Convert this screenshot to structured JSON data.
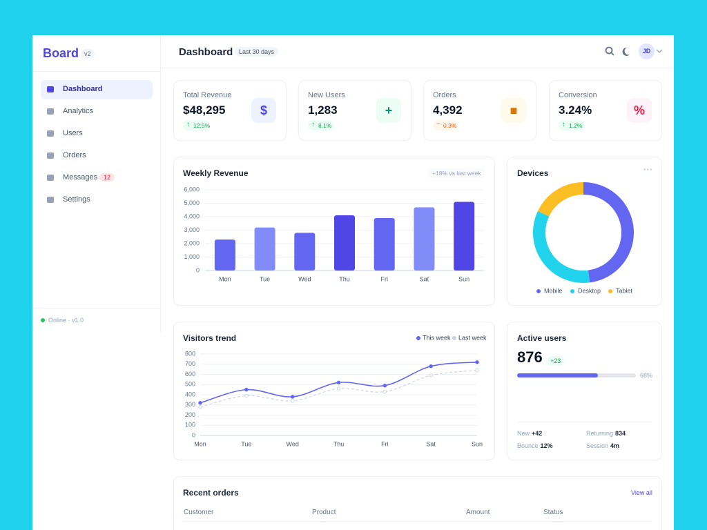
{
  "sidebar": {
    "brand": "Board",
    "version": "v2",
    "nav": [
      {
        "label": "Dashboard"
      },
      {
        "label": "Analytics"
      },
      {
        "label": "Users"
      },
      {
        "label": "Orders"
      },
      {
        "label": "Messages",
        "badge": "12"
      },
      {
        "label": "Settings"
      }
    ],
    "status": "Online · v1.0"
  },
  "header": {
    "title": "Dashboard",
    "range": "Last 30 days",
    "avatar": "JD"
  },
  "kpis": [
    {
      "label": "Total Revenue",
      "value": "$48,295",
      "change": "12.5%",
      "trend": "up"
    },
    {
      "label": "New Users",
      "value": "1,283",
      "change": "8.1%",
      "trend": "up"
    },
    {
      "label": "Orders",
      "value": "4,392",
      "change": "0.3%",
      "trend": "flat"
    },
    {
      "label": "Conversion",
      "value": "3.24%",
      "change": "1.2%",
      "trend": "up"
    }
  ],
  "weekly_revenue": {
    "type": "bar",
    "title": "Weekly Revenue",
    "note": "+18% vs last week",
    "categories": [
      "Mon",
      "Tue",
      "Wed",
      "Thu",
      "Fri",
      "Sat",
      "Sun"
    ],
    "values": [
      2300,
      3200,
      2800,
      4100,
      3900,
      4700,
      5100
    ],
    "colors": [
      "#6366f1",
      "#818cf8",
      "#6366f1",
      "#4f46e5",
      "#6366f1",
      "#818cf8",
      "#4f46e5"
    ],
    "ylim": [
      0,
      6000
    ],
    "yticks": [
      0,
      {
        "value": 1000,
        "label": "1,000"
      },
      {
        "value": 2000,
        "label": "2,000"
      },
      {
        "value": 3000,
        "label": "3,000"
      },
      {
        "value": 4000,
        "label": "4,000"
      },
      {
        "value": 5000,
        "label": "5,000"
      },
      {
        "value": 6000,
        "label": "6,000"
      }
    ],
    "grid": true
  },
  "devices": {
    "type": "pie",
    "title": "Devices",
    "donut": true,
    "categories": [
      "Mobile",
      "Desktop",
      "Tablet"
    ],
    "values": [
      48,
      34,
      18
    ],
    "colors": [
      "#6366f1",
      "#22d3ee",
      "#fbbf24"
    ]
  },
  "visitors_trend": {
    "type": "line",
    "title": "Visitors trend",
    "categories": [
      "Mon",
      "Tue",
      "Wed",
      "Thu",
      "Fri",
      "Sat",
      "Sun"
    ],
    "series": [
      {
        "name": "This week",
        "color": "#6366f1",
        "values": [
          320,
          450,
          380,
          520,
          490,
          680,
          720
        ]
      },
      {
        "name": "Last week",
        "color": "#cbd5e1",
        "dashed": true,
        "values": [
          280,
          390,
          340,
          460,
          430,
          590,
          640
        ]
      }
    ],
    "ylim": [
      0,
      800
    ],
    "yticks": [
      0,
      100,
      200,
      300,
      400,
      500,
      600,
      700,
      800
    ],
    "grid": true
  },
  "active_users": {
    "title": "Active users",
    "value": 876,
    "change": "+23",
    "progress": {
      "value": 68,
      "label": "68%"
    },
    "stats": [
      {
        "label": "New",
        "value": "+42"
      },
      {
        "label": "Returning",
        "value": "834"
      },
      {
        "label": "Bounce",
        "value": "12%"
      },
      {
        "label": "Session",
        "value": "4m"
      }
    ]
  },
  "recent_orders": {
    "title": "Recent orders",
    "action": "View all",
    "columns": [
      "Customer",
      "Product",
      "Amount",
      "Status"
    ]
  }
}
